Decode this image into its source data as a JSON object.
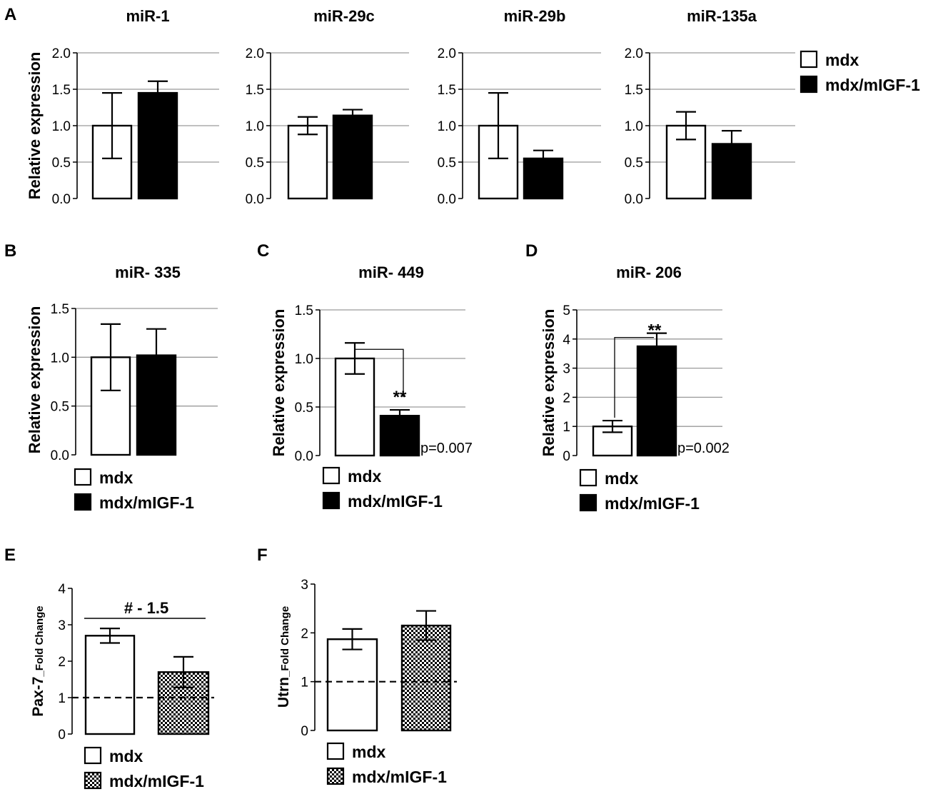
{
  "figure": {
    "legend": {
      "series": [
        "mdx",
        "mdx/mIGF-1"
      ]
    }
  },
  "chart_data": [
    {
      "id": "A1",
      "panel_label": "A",
      "type": "bar",
      "title": "miR-1",
      "ylabel": "Relative expression",
      "xlabel": "",
      "ylim": [
        0,
        2.0
      ],
      "yticks": [
        "0.0",
        "0.5",
        "1.0",
        "1.5",
        "2.0"
      ],
      "grid": true,
      "series": [
        {
          "name": "mdx",
          "value": 1.0,
          "error": 0.45,
          "fill": "white"
        },
        {
          "name": "mdx/mIGF-1",
          "value": 1.45,
          "error": 0.16,
          "fill": "black"
        }
      ]
    },
    {
      "id": "A2",
      "type": "bar",
      "title": "miR-29c",
      "ylabel": "",
      "ylim": [
        0,
        2.0
      ],
      "yticks": [
        "0.0",
        "0.5",
        "1.0",
        "1.5",
        "2.0"
      ],
      "grid": true,
      "series": [
        {
          "name": "mdx",
          "value": 1.0,
          "error": 0.12,
          "fill": "white"
        },
        {
          "name": "mdx/mIGF-1",
          "value": 1.14,
          "error": 0.08,
          "fill": "black"
        }
      ]
    },
    {
      "id": "A3",
      "type": "bar",
      "title": "miR-29b",
      "ylabel": "",
      "ylim": [
        0,
        2.0
      ],
      "yticks": [
        "0.0",
        "0.5",
        "1.0",
        "1.5",
        "2.0"
      ],
      "grid": true,
      "series": [
        {
          "name": "mdx",
          "value": 1.0,
          "error": 0.45,
          "fill": "white"
        },
        {
          "name": "mdx/mIGF-1",
          "value": 0.55,
          "error": 0.11,
          "fill": "black"
        }
      ]
    },
    {
      "id": "A4",
      "type": "bar",
      "title": "miR-135a",
      "ylabel": "",
      "ylim": [
        0,
        2.0
      ],
      "yticks": [
        "0.0",
        "0.5",
        "1.0",
        "1.5",
        "2.0"
      ],
      "grid": true,
      "series": [
        {
          "name": "mdx",
          "value": 1.0,
          "error": 0.19,
          "fill": "white"
        },
        {
          "name": "mdx/mIGF-1",
          "value": 0.75,
          "error": 0.18,
          "fill": "black"
        }
      ]
    },
    {
      "id": "B",
      "panel_label": "B",
      "type": "bar",
      "title": "miR- 335",
      "ylabel": "Relative expression",
      "ylim": [
        0,
        1.5
      ],
      "yticks": [
        "0.0",
        "0.5",
        "1.0",
        "1.5"
      ],
      "grid": true,
      "series": [
        {
          "name": "mdx",
          "value": 1.0,
          "error": 0.34,
          "fill": "white"
        },
        {
          "name": "mdx/mIGF-1",
          "value": 1.02,
          "error": 0.27,
          "fill": "black"
        }
      ]
    },
    {
      "id": "C",
      "panel_label": "C",
      "type": "bar",
      "title": "miR- 449",
      "ylabel": "Relative expression",
      "ylim": [
        0,
        1.5
      ],
      "yticks": [
        "0.0",
        "0.5",
        "1.0",
        "1.5"
      ],
      "grid": true,
      "series": [
        {
          "name": "mdx",
          "value": 1.0,
          "error": 0.16,
          "fill": "white"
        },
        {
          "name": "mdx/mIGF-1",
          "value": 0.41,
          "error": 0.06,
          "fill": "black"
        }
      ],
      "significance": "**",
      "p_value": "p=0.007"
    },
    {
      "id": "D",
      "panel_label": "D",
      "type": "bar",
      "title": "miR- 206",
      "ylabel": "Relative expression",
      "ylim": [
        0,
        5
      ],
      "yticks": [
        "0",
        "1",
        "2",
        "3",
        "4",
        "5"
      ],
      "grid": true,
      "series": [
        {
          "name": "mdx",
          "value": 1.0,
          "error": 0.2,
          "fill": "white"
        },
        {
          "name": "mdx/mIGF-1",
          "value": 3.75,
          "error": 0.45,
          "fill": "black"
        }
      ],
      "significance": "**",
      "p_value": "p=0.002"
    },
    {
      "id": "E",
      "panel_label": "E",
      "type": "bar",
      "title": "",
      "ylabel": "Pax-7",
      "ylabel_sub": "_Fold Change",
      "ylim": [
        0,
        4
      ],
      "yticks": [
        "0",
        "1",
        "2",
        "3",
        "4"
      ],
      "grid": false,
      "reference_line": 1,
      "series": [
        {
          "name": "mdx",
          "value": 2.7,
          "error": 0.2,
          "fill": "white"
        },
        {
          "name": "mdx/mIGF-1",
          "value": 1.7,
          "error": 0.42,
          "fill": "checker"
        }
      ],
      "annotation": "#  - 1.5"
    },
    {
      "id": "F",
      "panel_label": "F",
      "type": "bar",
      "title": "",
      "ylabel": "Utrn",
      "ylabel_sub": "_Fold Change",
      "ylim": [
        0,
        3
      ],
      "yticks": [
        "0",
        "1",
        "2",
        "3"
      ],
      "grid": false,
      "reference_line": 1,
      "series": [
        {
          "name": "mdx",
          "value": 1.87,
          "error": 0.21,
          "fill": "white"
        },
        {
          "name": "mdx/mIGF-1",
          "value": 2.15,
          "error": 0.3,
          "fill": "checker"
        }
      ]
    }
  ]
}
